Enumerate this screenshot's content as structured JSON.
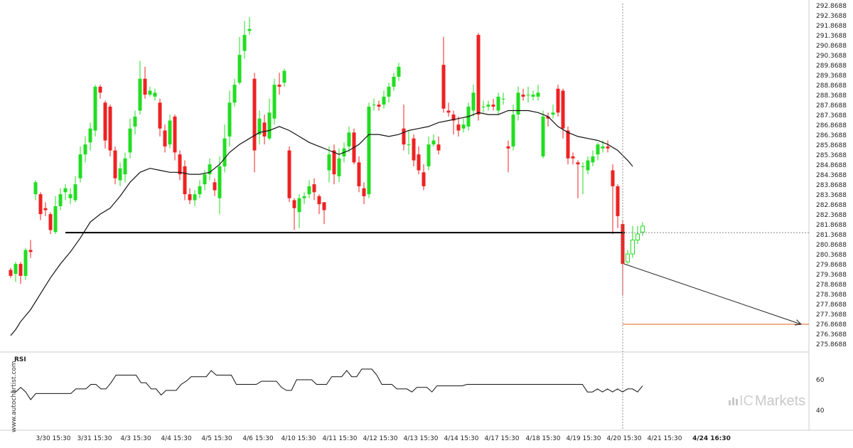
{
  "chart_data": {
    "type": "candlestick",
    "instrument_note": "",
    "y_axis": {
      "ticks": [
        "292.8688",
        "292.3688",
        "291.8688",
        "291.3688",
        "290.8688",
        "290.3688",
        "289.8688",
        "289.3688",
        "288.8688",
        "288.3688",
        "287.8688",
        "287.3688",
        "286.8688",
        "286.3688",
        "285.8688",
        "285.3688",
        "284.8688",
        "284.3688",
        "283.8688",
        "283.3688",
        "282.8688",
        "282.3688",
        "281.8688",
        "281.3688",
        "280.8688",
        "280.3688",
        "279.8688",
        "279.3688",
        "278.8688",
        "278.3688",
        "277.8688",
        "277.3688",
        "276.8688",
        "276.3688",
        "275.8688"
      ],
      "range": [
        275.8688,
        292.8688
      ]
    },
    "x_axis": {
      "date_labels": [
        "3/30 15:30",
        "3/31 15:30",
        "4/3 15:30",
        "4/4 15:30",
        "4/5 15:30",
        "4/6 15:30",
        "4/10 15:30",
        "4/11 15:30",
        "4/12 15:30",
        "4/13 15:30",
        "4/14 15:30",
        "4/17 15:30",
        "4/18 15:30",
        "4/19 15:30",
        "4/20 15:30",
        "4/21 15:30",
        "4/24 16:30"
      ],
      "highlight_label": "4/24 16:30"
    },
    "colors": {
      "up": "#22dd22",
      "down": "#ee2222",
      "ma": "#111111",
      "support": "#000000",
      "target": "#e06020",
      "crosshair": "#777777"
    },
    "support_level": 281.47,
    "target_level": 276.87,
    "projection": {
      "from": 279.9,
      "to": 276.87
    },
    "candles": [
      [
        279.6,
        279.3,
        279.7,
        279.2
      ],
      [
        279.4,
        279.9,
        280.0,
        279.0
      ],
      [
        279.9,
        279.3,
        280.0,
        278.9
      ],
      [
        279.3,
        280.6,
        280.7,
        279.1
      ],
      [
        280.6,
        280.5,
        281.1,
        280.2
      ],
      [
        283.4,
        284.0,
        284.1,
        283.1
      ],
      [
        283.4,
        282.4,
        283.5,
        282.1
      ],
      [
        282.7,
        282.6,
        283.0,
        282.3
      ],
      [
        282.4,
        281.6,
        282.5,
        281.4
      ],
      [
        281.5,
        282.8,
        283.3,
        281.4
      ],
      [
        282.8,
        283.4,
        283.7,
        282.6
      ],
      [
        283.5,
        283.7,
        283.9,
        283.1
      ],
      [
        283.2,
        283.4,
        283.7,
        282.9
      ],
      [
        283.1,
        283.9,
        284.3,
        283.0
      ],
      [
        284.2,
        285.4,
        285.8,
        284.0
      ],
      [
        285.4,
        285.9,
        286.3,
        285.0
      ],
      [
        286.0,
        286.7,
        287.0,
        285.6
      ],
      [
        286.6,
        288.8,
        288.9,
        286.3
      ],
      [
        288.8,
        288.5,
        288.9,
        288.2
      ],
      [
        288.0,
        286.1,
        288.1,
        285.7
      ],
      [
        287.8,
        285.6,
        287.9,
        285.3
      ],
      [
        285.6,
        284.2,
        285.8,
        283.9
      ],
      [
        284.1,
        284.7,
        285.0,
        283.8
      ],
      [
        284.4,
        285.2,
        285.5,
        284.0
      ],
      [
        285.5,
        286.7,
        287.2,
        285.2
      ],
      [
        286.8,
        287.3,
        287.6,
        286.4
      ],
      [
        287.6,
        289.2,
        290.1,
        287.4
      ],
      [
        289.2,
        288.4,
        289.8,
        288.2
      ],
      [
        288.4,
        288.6,
        288.8,
        288.3
      ],
      [
        288.3,
        288.5,
        288.7,
        288.1
      ],
      [
        288.0,
        286.7,
        288.2,
        286.3
      ],
      [
        286.6,
        285.8,
        286.9,
        285.5
      ],
      [
        285.9,
        287.1,
        287.4,
        285.7
      ],
      [
        287.3,
        285.5,
        287.4,
        285.1
      ],
      [
        285.4,
        284.4,
        285.6,
        284.1
      ],
      [
        284.8,
        283.4,
        285.1,
        283.1
      ],
      [
        283.4,
        283.1,
        283.7,
        282.9
      ],
      [
        283.1,
        283.4,
        283.6,
        282.8
      ],
      [
        283.4,
        283.8,
        284.1,
        283.2
      ],
      [
        283.9,
        284.4,
        284.6,
        283.6
      ],
      [
        284.4,
        284.9,
        285.2,
        284.1
      ],
      [
        284.0,
        283.6,
        284.2,
        283.3
      ],
      [
        283.2,
        284.8,
        285.3,
        282.4
      ],
      [
        284.8,
        286.2,
        286.9,
        284.5
      ],
      [
        286.3,
        288.0,
        288.6,
        285.8
      ],
      [
        288.0,
        288.9,
        289.2,
        287.8
      ],
      [
        289.0,
        290.4,
        291.3,
        288.9
      ],
      [
        290.6,
        291.4,
        292.1,
        290.2
      ],
      [
        291.6,
        291.7,
        292.3,
        291.4
      ],
      [
        289.2,
        285.6,
        289.5,
        284.5
      ],
      [
        286.4,
        287.2,
        287.6,
        285.9
      ],
      [
        287.0,
        286.3,
        287.4,
        285.9
      ],
      [
        286.2,
        287.5,
        288.2,
        286.1
      ],
      [
        287.2,
        288.9,
        289.2,
        286.9
      ],
      [
        288.9,
        288.8,
        289.5,
        288.4
      ],
      [
        289.0,
        289.6,
        289.7,
        288.8
      ],
      [
        285.6,
        283.2,
        285.8,
        283.0
      ],
      [
        283.1,
        282.7,
        283.2,
        281.6
      ],
      [
        282.5,
        283.2,
        283.4,
        281.7
      ],
      [
        283.2,
        283.3,
        283.5,
        282.9
      ],
      [
        283.4,
        283.8,
        284.1,
        283.2
      ],
      [
        283.9,
        283.5,
        284.2,
        283.1
      ],
      [
        283.3,
        282.9,
        283.4,
        282.4
      ],
      [
        283.0,
        282.6,
        283.0,
        281.9
      ],
      [
        284.6,
        285.4,
        285.8,
        284.0
      ],
      [
        285.6,
        284.4,
        285.9,
        283.9
      ],
      [
        284.3,
        285.2,
        285.7,
        284.0
      ],
      [
        285.3,
        285.7,
        286.0,
        285.0
      ],
      [
        285.8,
        286.5,
        286.8,
        285.5
      ],
      [
        286.5,
        285.0,
        286.7,
        284.9
      ],
      [
        285.0,
        283.8,
        285.3,
        283.5
      ],
      [
        283.7,
        283.3,
        284.0,
        282.9
      ],
      [
        283.4,
        287.8,
        288.0,
        283.2
      ],
      [
        287.9,
        287.9,
        288.2,
        287.6
      ],
      [
        287.9,
        287.8,
        288.1,
        287.6
      ],
      [
        287.9,
        288.3,
        288.6,
        287.7
      ],
      [
        288.3,
        288.8,
        289.0,
        288.0
      ],
      [
        288.8,
        289.3,
        289.5,
        288.6
      ],
      [
        289.3,
        289.8,
        290.0,
        289.1
      ],
      [
        286.7,
        285.9,
        287.9,
        285.6
      ],
      [
        285.9,
        285.9,
        286.6,
        285.4
      ],
      [
        286.2,
        285.1,
        286.4,
        284.8
      ],
      [
        285.4,
        284.6,
        285.8,
        284.4
      ],
      [
        284.5,
        283.8,
        284.9,
        283.6
      ],
      [
        284.8,
        285.9,
        286.3,
        284.6
      ],
      [
        285.9,
        286.1,
        286.4,
        285.8
      ],
      [
        285.9,
        285.6,
        286.3,
        285.4
      ],
      [
        289.9,
        287.7,
        291.3,
        287.5
      ],
      [
        287.6,
        287.5,
        288.0,
        287.3
      ],
      [
        287.4,
        287.1,
        287.6,
        286.4
      ],
      [
        286.9,
        286.6,
        287.3,
        286.3
      ],
      [
        286.7,
        286.9,
        287.2,
        286.5
      ],
      [
        286.8,
        287.8,
        288.0,
        286.6
      ],
      [
        287.6,
        288.5,
        288.9,
        287.3
      ],
      [
        291.4,
        287.4,
        291.5,
        287.1
      ],
      [
        287.8,
        287.8,
        288.1,
        287.5
      ],
      [
        287.8,
        287.9,
        288.1,
        287.6
      ],
      [
        287.9,
        287.8,
        288.2,
        287.6
      ],
      [
        287.6,
        288.3,
        288.5,
        287.4
      ],
      [
        288.2,
        288.2,
        288.5,
        287.9
      ],
      [
        285.8,
        285.7,
        286.1,
        284.5
      ],
      [
        285.8,
        287.4,
        287.9,
        285.6
      ],
      [
        287.4,
        288.5,
        288.8,
        287.1
      ],
      [
        288.4,
        288.3,
        288.7,
        288.1
      ],
      [
        288.4,
        288.4,
        288.8,
        288.0
      ],
      [
        288.3,
        288.4,
        288.6,
        288.1
      ],
      [
        288.3,
        288.5,
        288.9,
        288.1
      ],
      [
        285.3,
        287.3,
        287.6,
        285.2
      ],
      [
        287.3,
        287.2,
        287.5,
        286.8
      ],
      [
        287.4,
        287.5,
        287.9,
        287.2
      ],
      [
        288.7,
        287.5,
        288.9,
        287.3
      ],
      [
        288.6,
        286.7,
        288.7,
        286.2
      ],
      [
        286.6,
        285.2,
        286.8,
        284.9
      ],
      [
        285.3,
        285.2,
        285.5,
        284.9
      ],
      [
        285.0,
        284.9,
        285.1,
        283.2
      ],
      [
        284.8,
        284.8,
        285.0,
        283.4
      ],
      [
        284.6,
        285.1,
        285.3,
        284.4
      ],
      [
        285.0,
        285.3,
        285.6,
        284.8
      ],
      [
        285.4,
        285.9,
        286.0,
        285.1
      ],
      [
        285.7,
        285.8,
        286.1,
        285.5
      ],
      [
        285.8,
        285.7,
        286.1,
        285.5
      ],
      [
        284.6,
        283.8,
        284.9,
        281.4
      ],
      [
        283.8,
        282.3,
        283.9,
        281.7
      ],
      [
        281.9,
        279.9,
        282.1,
        278.3
      ],
      [
        280.0,
        280.4,
        280.6,
        279.9
      ],
      [
        280.4,
        281.1,
        281.8,
        280.2
      ],
      [
        281.1,
        281.4,
        281.8,
        280.9
      ],
      [
        281.5,
        281.8,
        282.0,
        281.3
      ]
    ],
    "ma_line": [
      [
        0,
        276.3
      ],
      [
        1,
        276.6
      ],
      [
        2,
        277.0
      ],
      [
        4,
        277.6
      ],
      [
        6,
        278.4
      ],
      [
        8,
        279.2
      ],
      [
        10,
        279.9
      ],
      [
        12,
        280.5
      ],
      [
        14,
        281.2
      ],
      [
        16,
        282.0
      ],
      [
        18,
        282.4
      ],
      [
        20,
        282.7
      ],
      [
        22,
        283.3
      ],
      [
        24,
        284.0
      ],
      [
        26,
        284.5
      ],
      [
        28,
        284.7
      ],
      [
        30,
        284.6
      ],
      [
        32,
        284.5
      ],
      [
        34,
        284.5
      ],
      [
        36,
        284.4
      ],
      [
        38,
        284.4
      ],
      [
        40,
        284.5
      ],
      [
        42,
        284.9
      ],
      [
        44,
        285.5
      ],
      [
        46,
        285.9
      ],
      [
        48,
        286.2
      ],
      [
        50,
        286.5
      ],
      [
        52,
        286.6
      ],
      [
        54,
        286.8
      ],
      [
        56,
        286.6
      ],
      [
        58,
        286.3
      ],
      [
        60,
        286.0
      ],
      [
        62,
        285.8
      ],
      [
        64,
        285.6
      ],
      [
        66,
        285.4
      ],
      [
        68,
        285.6
      ],
      [
        70,
        285.9
      ],
      [
        72,
        286.4
      ],
      [
        74,
        286.4
      ],
      [
        76,
        286.3
      ],
      [
        78,
        286.4
      ],
      [
        80,
        286.6
      ],
      [
        82,
        286.7
      ],
      [
        84,
        286.8
      ],
      [
        86,
        287.0
      ],
      [
        88,
        287.1
      ],
      [
        90,
        287.2
      ],
      [
        92,
        287.3
      ],
      [
        94,
        287.5
      ],
      [
        96,
        287.4
      ],
      [
        98,
        287.4
      ],
      [
        100,
        287.6
      ],
      [
        102,
        287.6
      ],
      [
        104,
        287.6
      ],
      [
        106,
        287.5
      ],
      [
        108,
        287.3
      ],
      [
        110,
        286.8
      ],
      [
        112,
        286.5
      ],
      [
        114,
        286.3
      ],
      [
        116,
        286.2
      ],
      [
        118,
        286.1
      ],
      [
        120,
        285.9
      ],
      [
        122,
        285.6
      ],
      [
        124,
        285.1
      ],
      [
        125,
        284.8
      ]
    ]
  },
  "rsi_panel": {
    "title": "RSI",
    "ticks": [
      "60",
      "40"
    ],
    "values": [
      52,
      52,
      55,
      52,
      47,
      51,
      51,
      51,
      51,
      51,
      51,
      51,
      51,
      54,
      54,
      54,
      57,
      57,
      54,
      54,
      58,
      63,
      63,
      63,
      63,
      63,
      58,
      58,
      54,
      54,
      50,
      53,
      53,
      53,
      57,
      59,
      62,
      62,
      62,
      62,
      66,
      63,
      63,
      63,
      63,
      57,
      57,
      57,
      57,
      57,
      59,
      59,
      59,
      59,
      55,
      53,
      53,
      60,
      60,
      60,
      60,
      57,
      57,
      57,
      62,
      62,
      62,
      66,
      62,
      62,
      67,
      67,
      67,
      63,
      57,
      57,
      57,
      54,
      54,
      54,
      52,
      55,
      55,
      55,
      52,
      56,
      56,
      56,
      56,
      56,
      56,
      57,
      57,
      57,
      57,
      57,
      57,
      57,
      57,
      57,
      57,
      57,
      57,
      57,
      57,
      57,
      57,
      57,
      57,
      57,
      57,
      57,
      57,
      57,
      57,
      52,
      52,
      54,
      52,
      54,
      52,
      54,
      52,
      54,
      54,
      52,
      56
    ]
  },
  "watermark": "www.autochartist.com",
  "brand": {
    "ic": "IC",
    "name": "Markets"
  }
}
